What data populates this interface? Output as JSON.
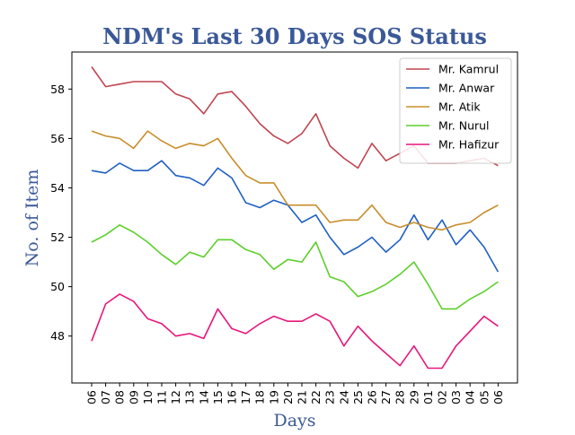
{
  "chart_data": {
    "type": "line",
    "title": "NDM's Last 30 Days SOS Status",
    "xlabel": "Days",
    "ylabel": "No. of Item",
    "title_color": "#3b5998",
    "label_color": "#3b5998",
    "x": [
      "06",
      "07",
      "08",
      "09",
      "10",
      "11",
      "12",
      "13",
      "14",
      "15",
      "16",
      "17",
      "18",
      "19",
      "20",
      "21",
      "22",
      "23",
      "24",
      "25",
      "26",
      "27",
      "28",
      "29",
      "01",
      "02",
      "03",
      "04",
      "05",
      "06"
    ],
    "ylim": [
      46.1,
      59.5
    ],
    "yticks": [
      48,
      50,
      52,
      54,
      56,
      58
    ],
    "grid": false,
    "legend_position": "top-right",
    "series": [
      {
        "name": "Mr. Kamrul",
        "color": "#c0444f",
        "values": [
          58.9,
          58.1,
          58.2,
          58.3,
          58.3,
          58.3,
          57.8,
          57.6,
          57.0,
          57.8,
          57.9,
          57.3,
          56.6,
          56.1,
          55.8,
          56.2,
          57.0,
          55.7,
          55.2,
          54.8,
          55.8,
          55.1,
          55.4,
          55.7,
          55.0,
          55.0,
          55.0,
          55.1,
          55.2,
          54.9
        ]
      },
      {
        "name": "Mr. Anwar",
        "color": "#1f5fc4",
        "values": [
          54.7,
          54.6,
          55.0,
          54.7,
          54.7,
          55.1,
          54.5,
          54.4,
          54.1,
          54.8,
          54.4,
          53.4,
          53.2,
          53.5,
          53.3,
          52.6,
          52.9,
          52.0,
          51.3,
          51.6,
          52.0,
          51.4,
          51.9,
          52.9,
          51.9,
          52.7,
          51.7,
          52.3,
          51.6,
          50.6
        ]
      },
      {
        "name": "Mr. Atik",
        "color": "#c88d2a",
        "values": [
          56.3,
          56.1,
          56.0,
          55.6,
          56.3,
          55.9,
          55.6,
          55.8,
          55.7,
          56.0,
          55.2,
          54.5,
          54.2,
          54.2,
          53.3,
          53.3,
          53.3,
          52.6,
          52.7,
          52.7,
          53.3,
          52.6,
          52.4,
          52.6,
          52.4,
          52.3,
          52.5,
          52.6,
          53.0,
          53.3
        ]
      },
      {
        "name": "Mr. Nurul",
        "color": "#5ccf2b",
        "values": [
          51.8,
          52.1,
          52.5,
          52.2,
          51.8,
          51.3,
          50.9,
          51.4,
          51.2,
          51.9,
          51.9,
          51.5,
          51.3,
          50.7,
          51.1,
          51.0,
          51.8,
          50.4,
          50.2,
          49.6,
          49.8,
          50.1,
          50.5,
          51.0,
          50.1,
          49.1,
          49.1,
          49.5,
          49.8,
          50.2
        ]
      },
      {
        "name": "Mr. Hafizur",
        "color": "#e8157a",
        "values": [
          47.8,
          49.3,
          49.7,
          49.4,
          48.7,
          48.5,
          48.0,
          48.1,
          47.9,
          49.1,
          48.3,
          48.1,
          48.5,
          48.8,
          48.6,
          48.6,
          48.9,
          48.6,
          47.6,
          48.4,
          47.8,
          47.3,
          46.8,
          47.6,
          46.7,
          46.7,
          47.6,
          48.2,
          48.8,
          48.4
        ]
      }
    ]
  }
}
